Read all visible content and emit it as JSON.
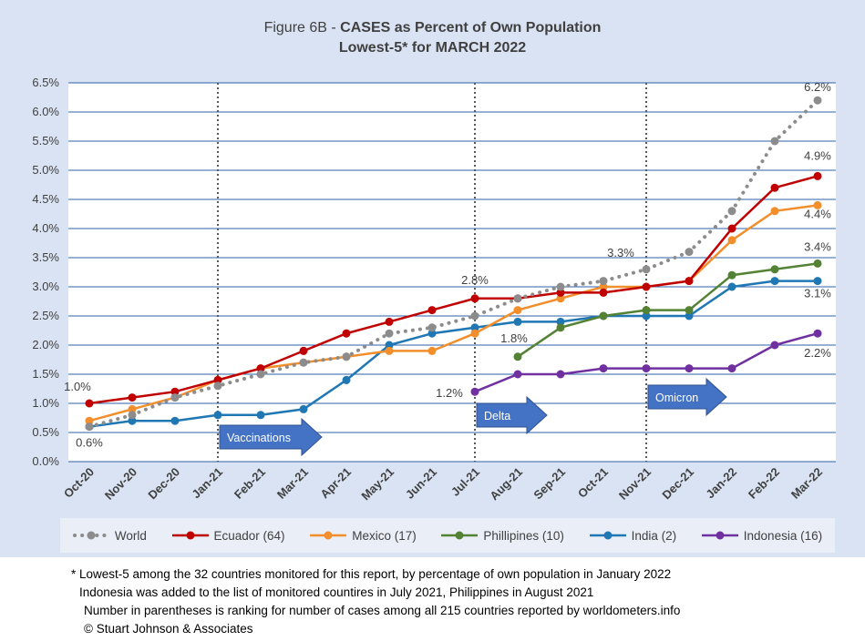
{
  "title": {
    "prefix": "Figure 6B - ",
    "bold": "CASES as Percent of Own Population",
    "line2": "Lowest-5* for MARCH 2022"
  },
  "colors": {
    "world": "#8c8c8c",
    "ecuador": "#c00000",
    "mexico": "#f28e2b",
    "phillipines": "#548235",
    "india": "#1f77b4",
    "indonesia": "#7030a0",
    "arrow": "#4472c4"
  },
  "chart_data": {
    "type": "line",
    "categories": [
      "Oct-20",
      "Nov-20",
      "Dec-20",
      "Jan-21",
      "Feb-21",
      "Mar-21",
      "Apr-21",
      "May-21",
      "Jun-21",
      "Jul-21",
      "Aug-21",
      "Sep-21",
      "Oct-21",
      "Nov-21",
      "Dec-21",
      "Jan-22",
      "Feb-22",
      "Mar-22"
    ],
    "y_ticks": [
      "0.0%",
      "0.5%",
      "1.0%",
      "1.5%",
      "2.0%",
      "2.5%",
      "3.0%",
      "3.5%",
      "4.0%",
      "4.5%",
      "5.0%",
      "5.5%",
      "6.0%",
      "6.5%"
    ],
    "ylim": [
      0,
      6.5
    ],
    "grid": true,
    "legend_position": "bottom",
    "series": [
      {
        "name": "World",
        "key": "world",
        "style": "dotted",
        "values": [
          0.6,
          0.8,
          1.1,
          1.3,
          1.5,
          1.7,
          1.8,
          2.2,
          2.3,
          2.5,
          2.8,
          3.0,
          3.1,
          3.3,
          3.6,
          4.3,
          5.5,
          6.2
        ]
      },
      {
        "name": "Ecuador (64)",
        "key": "ecuador",
        "style": "solid",
        "values": [
          1.0,
          1.1,
          1.2,
          1.4,
          1.6,
          1.9,
          2.2,
          2.4,
          2.6,
          2.8,
          2.8,
          2.9,
          2.9,
          3.0,
          3.1,
          4.0,
          4.7,
          4.9
        ]
      },
      {
        "name": "Mexico (17)",
        "key": "mexico",
        "style": "solid",
        "values": [
          0.7,
          0.9,
          1.1,
          1.4,
          1.6,
          1.7,
          1.8,
          1.9,
          1.9,
          2.2,
          2.6,
          2.8,
          3.0,
          3.0,
          3.1,
          3.8,
          4.3,
          4.4
        ]
      },
      {
        "name": "Phillipines (10)",
        "key": "phillipines",
        "style": "solid",
        "values": [
          null,
          null,
          null,
          null,
          null,
          null,
          null,
          null,
          null,
          null,
          1.8,
          2.3,
          2.5,
          2.6,
          2.6,
          3.2,
          3.3,
          3.4
        ]
      },
      {
        "name": "India (2)",
        "key": "india",
        "style": "solid",
        "values": [
          0.6,
          0.7,
          0.7,
          0.8,
          0.8,
          0.9,
          1.4,
          2.0,
          2.2,
          2.3,
          2.4,
          2.4,
          2.5,
          2.5,
          2.5,
          3.0,
          3.1,
          3.1
        ]
      },
      {
        "name": "Indonesia (16)",
        "key": "indonesia",
        "style": "solid",
        "values": [
          null,
          null,
          null,
          null,
          null,
          null,
          null,
          null,
          null,
          1.2,
          1.5,
          1.5,
          1.6,
          1.6,
          1.6,
          1.6,
          2.0,
          2.2
        ]
      }
    ],
    "data_labels": [
      {
        "text": "1.0%",
        "x": "Oct-20",
        "y": 1.0
      },
      {
        "text": "0.6%",
        "x": "Oct-20",
        "y": 0.6
      },
      {
        "text": "2.8%",
        "x": "Jul-21",
        "y": 2.8
      },
      {
        "text": "1.2%",
        "x": "Jul-21",
        "y": 1.2
      },
      {
        "text": "1.8%",
        "x": "Aug-21",
        "y": 1.8
      },
      {
        "text": "3.3%",
        "x": "Nov-21",
        "y": 3.3
      },
      {
        "text": "6.2%",
        "x": "Mar-22",
        "y": 6.2
      },
      {
        "text": "4.9%",
        "x": "Mar-22",
        "y": 4.9
      },
      {
        "text": "4.4%",
        "x": "Mar-22",
        "y": 4.4
      },
      {
        "text": "3.4%",
        "x": "Mar-22",
        "y": 3.4
      },
      {
        "text": "3.1%",
        "x": "Mar-22",
        "y": 3.1
      },
      {
        "text": "2.2%",
        "x": "Mar-22",
        "y": 2.2
      }
    ],
    "annotations": [
      {
        "text": "Vaccinations",
        "x": "Jan-21",
        "type": "vertical-marker"
      },
      {
        "text": "Delta",
        "x": "Jul-21",
        "type": "vertical-marker"
      },
      {
        "text": "Omicron",
        "x": "Nov-21",
        "type": "vertical-marker"
      }
    ]
  },
  "footnotes": [
    "* Lowest-5 among the 32 countries monitored for this report, by percentage of own population in January 2022",
    "Indonesia was added to the list of monitored countires in July 2021, Philippines in August 2021",
    "Number in parentheses is ranking for number of cases among all 215 countries reported by worldometers.info",
    "© Stuart Johnson & Associates"
  ]
}
